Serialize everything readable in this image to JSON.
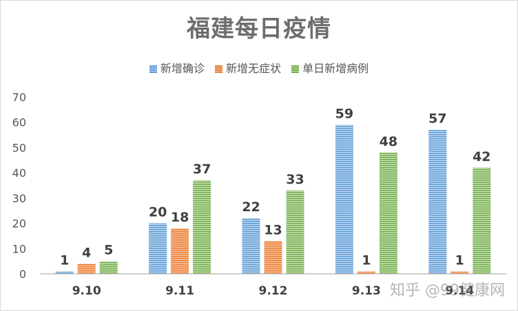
{
  "chart_data": {
    "type": "bar",
    "title": "福建每日疫情",
    "categories": [
      "9.10",
      "9.11",
      "9.12",
      "9.13",
      "9.14"
    ],
    "series": [
      {
        "name": "新增确诊",
        "color": "#5b9bd5",
        "values": [
          1,
          20,
          22,
          59,
          57
        ]
      },
      {
        "name": "新增无症状",
        "color": "#ed7d31",
        "values": [
          4,
          18,
          13,
          1,
          1
        ]
      },
      {
        "name": "单日新增病例",
        "color": "#70ad47",
        "values": [
          5,
          37,
          33,
          48,
          42
        ]
      }
    ],
    "ylim": [
      0,
      70
    ],
    "yticks": [
      "0",
      "10",
      "20",
      "30",
      "40",
      "50",
      "60",
      "70"
    ],
    "grid": false,
    "legend_position": "top"
  },
  "watermark": {
    "text": "知乎 @99健康网"
  }
}
